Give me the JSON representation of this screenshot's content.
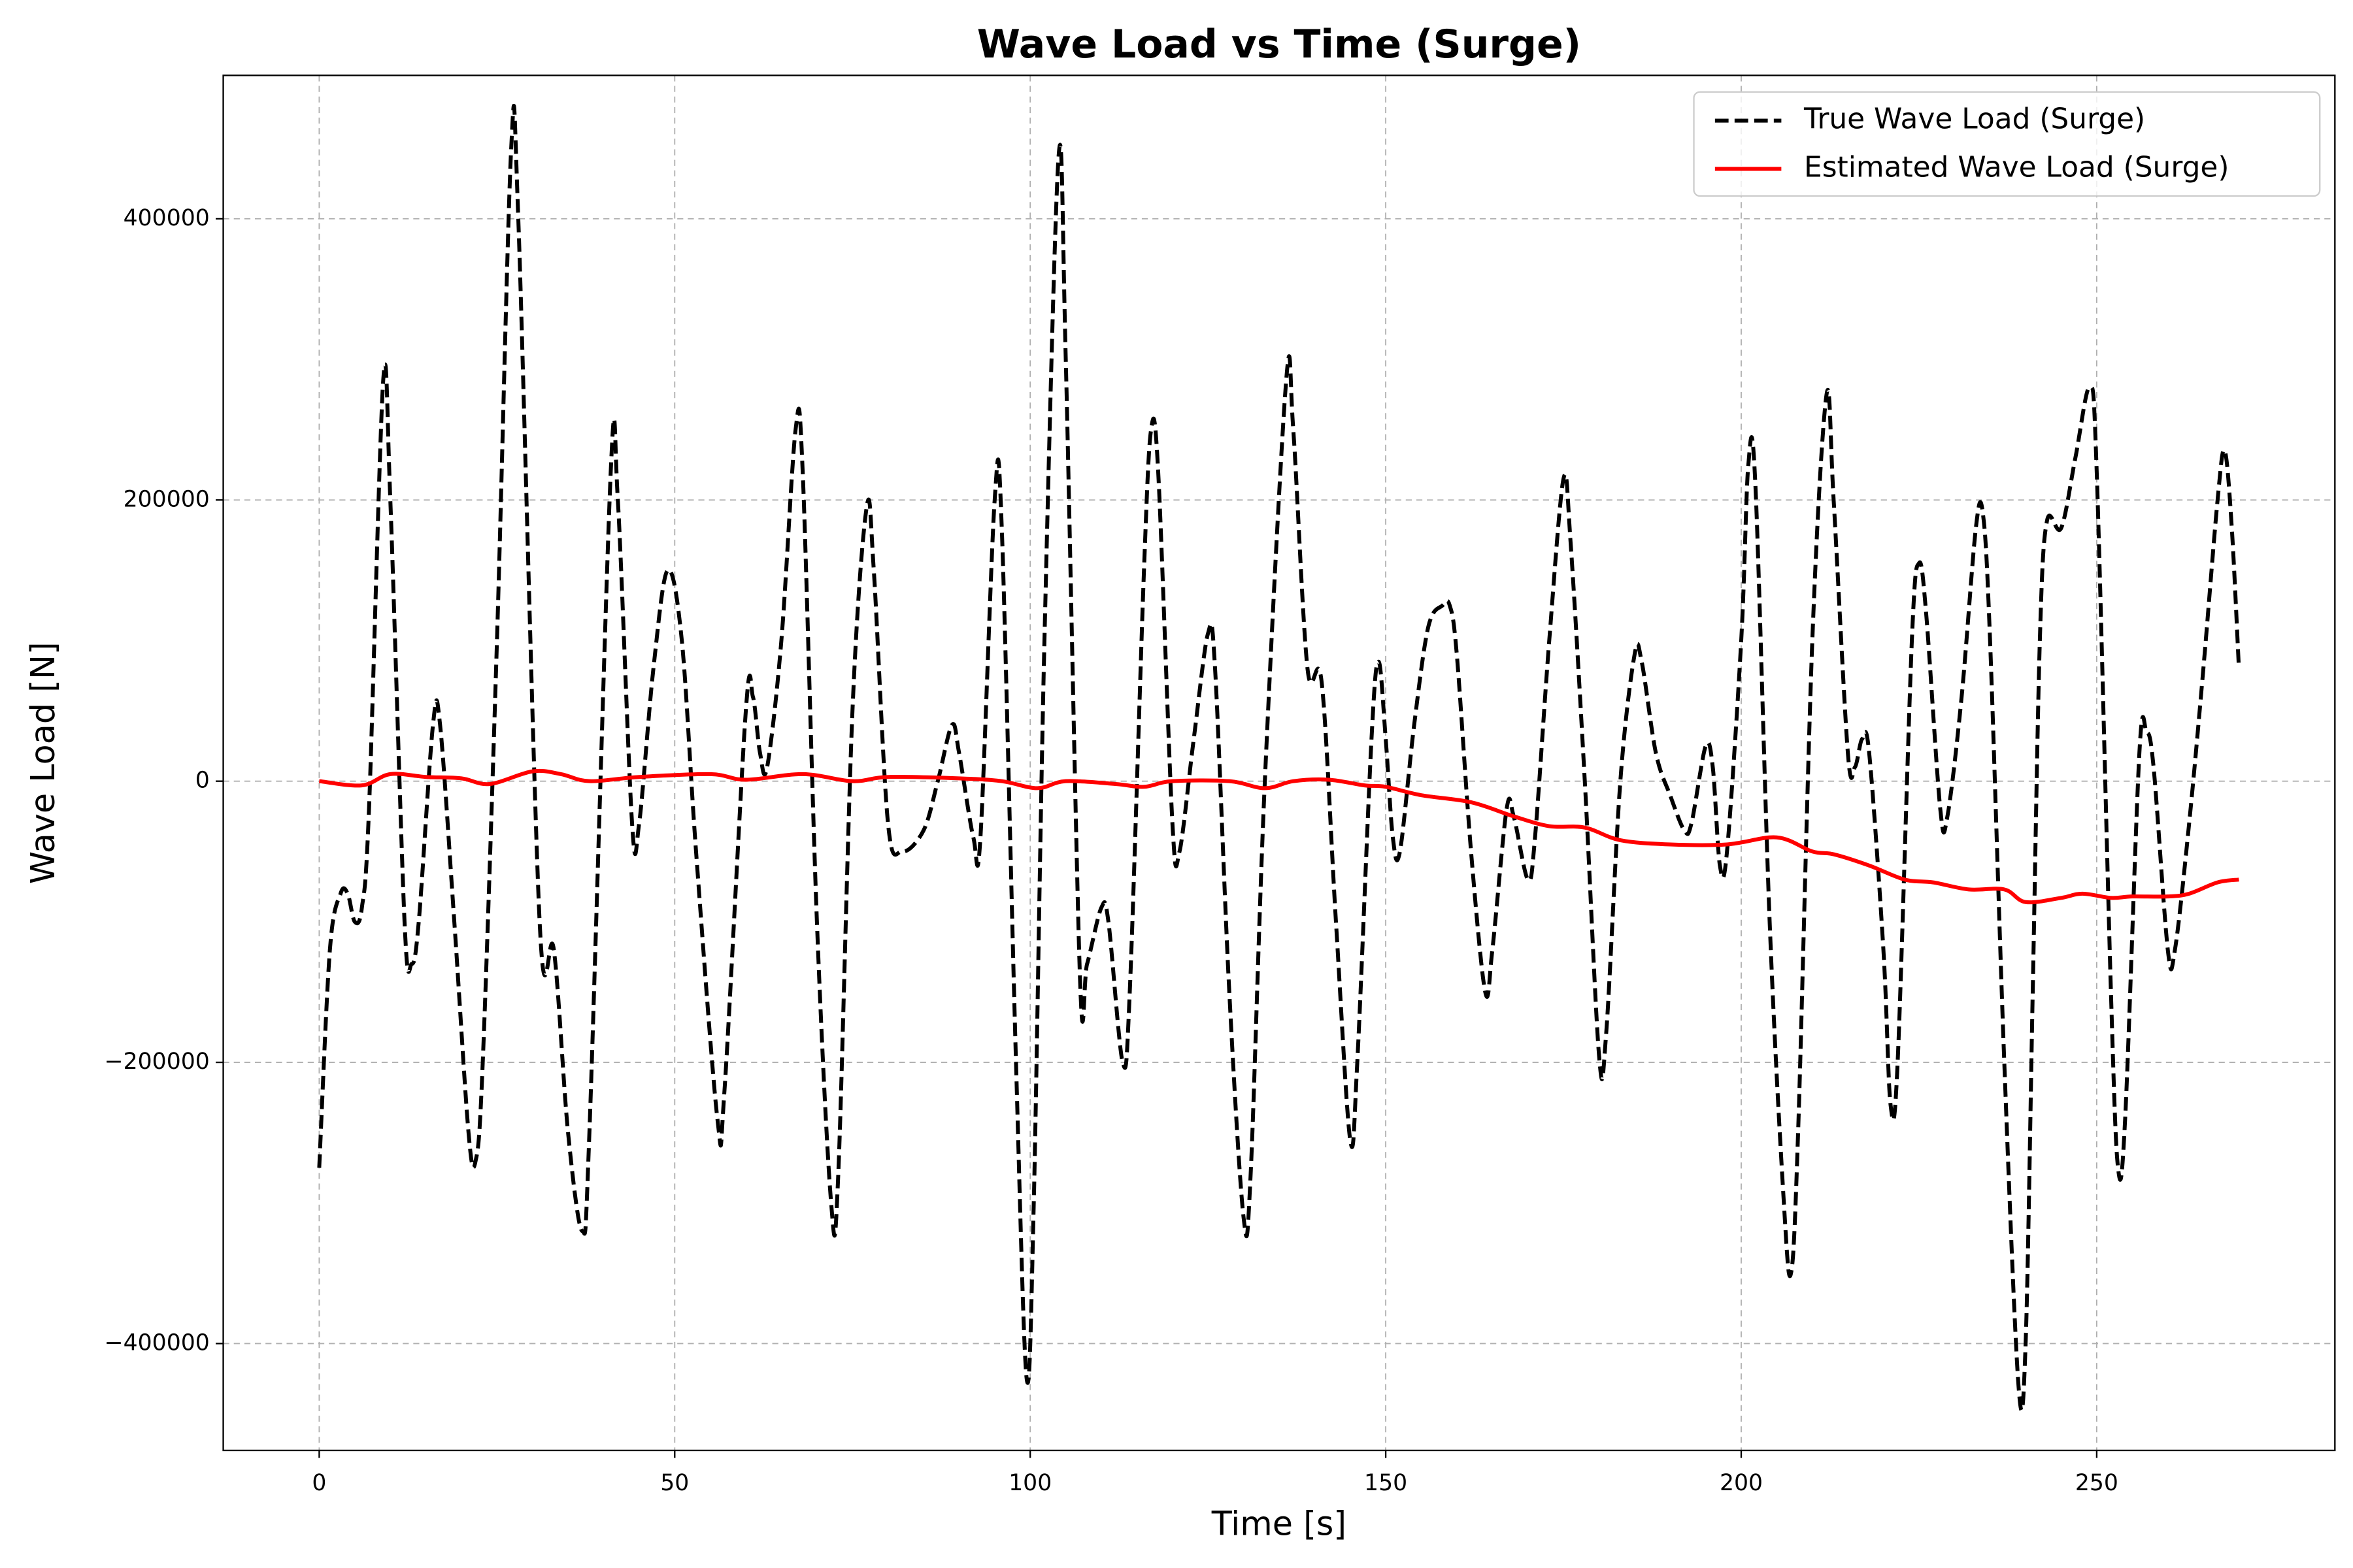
{
  "chart_data": {
    "type": "line",
    "title": "Wave Load vs Time (Surge)",
    "xlabel": "Time [s]",
    "ylabel": "Wave Load [N]",
    "xlim": [
      -13.5,
      283.5
    ],
    "ylim": [
      -476000,
      502000
    ],
    "xticks": [
      0,
      50,
      100,
      150,
      200,
      250
    ],
    "yticks": [
      {
        "value": -400000,
        "label": "−400000"
      },
      {
        "value": -200000,
        "label": "−200000"
      },
      0,
      200000,
      400000
    ],
    "grid": true,
    "legend": "upper right",
    "series": [
      {
        "name": "True Wave Load (Surge)",
        "color": "#000000",
        "style": "dashed",
        "x": [
          0,
          1.5,
          3,
          4,
          5,
          6,
          7,
          9,
          10,
          12,
          13,
          14,
          16,
          17,
          19,
          21,
          22,
          23,
          25,
          27,
          28,
          31,
          33,
          35,
          37,
          38,
          41,
          42,
          44,
          45,
          47,
          49,
          51,
          53,
          56,
          57,
          60,
          61,
          62,
          63,
          65,
          67,
          68,
          70,
          72,
          73,
          75,
          77,
          78,
          80,
          82,
          85,
          87,
          89,
          90,
          92,
          93,
          95,
          96,
          98,
          99.5,
          100.5,
          102,
          104,
          105,
          107,
          108,
          110,
          111,
          113,
          114,
          116,
          117,
          118,
          120,
          121,
          123,
          125,
          126,
          128,
          130,
          131,
          133,
          136,
          137,
          139,
          141,
          143,
          145,
          146,
          148,
          149,
          150,
          151,
          152,
          154,
          156,
          158,
          159,
          160,
          162,
          164,
          165,
          167,
          168,
          170,
          171,
          173,
          175,
          176,
          178,
          180,
          181,
          183,
          185,
          186,
          188,
          190,
          192,
          193,
          195,
          196,
          197,
          198,
          200,
          201,
          202,
          204,
          206,
          207,
          208,
          210,
          212,
          213,
          215,
          216,
          217,
          218,
          220,
          221,
          222,
          224,
          225,
          226,
          228,
          229,
          231,
          233,
          234,
          235,
          237,
          239,
          240,
          241,
          242,
          243,
          245,
          247,
          249,
          250,
          252,
          253,
          254,
          256,
          257,
          258,
          260,
          261,
          263,
          265,
          267,
          268,
          269,
          270
        ],
        "values": [
          -275000,
          -120000,
          -80000,
          -80000,
          -100000,
          -90000,
          -20000,
          285000,
          200000,
          -100000,
          -130000,
          -100000,
          40000,
          40000,
          -100000,
          -250000,
          -270000,
          -200000,
          100000,
          450000,
          400000,
          -100000,
          -120000,
          -250000,
          -320000,
          -250000,
          220000,
          200000,
          -30000,
          -30000,
          80000,
          150000,
          100000,
          -50000,
          -240000,
          -220000,
          50000,
          60000,
          20000,
          10000,
          100000,
          250000,
          220000,
          -100000,
          -300000,
          -280000,
          50000,
          195000,
          150000,
          -30000,
          -50000,
          -35000,
          0,
          40000,
          20000,
          -40000,
          -40000,
          200000,
          180000,
          -200000,
          -425000,
          -300000,
          100000,
          445000,
          300000,
          -140000,
          -130000,
          -90000,
          -100000,
          -200000,
          -150000,
          150000,
          250000,
          220000,
          -30000,
          -50000,
          30000,
          105000,
          80000,
          -150000,
          -310000,
          -280000,
          0,
          285000,
          250000,
          80000,
          70000,
          -100000,
          -255000,
          -200000,
          30000,
          85000,
          30000,
          -40000,
          -50000,
          40000,
          110000,
          125000,
          125000,
          90000,
          -50000,
          -150000,
          -120000,
          -20000,
          -25000,
          -70000,
          -40000,
          100000,
          215000,
          170000,
          0,
          -195000,
          -180000,
          0,
          90000,
          85000,
          20000,
          -10000,
          -35000,
          -30000,
          25000,
          10000,
          -60000,
          -50000,
          100000,
          225000,
          210000,
          -100000,
          -300000,
          -350000,
          -250000,
          100000,
          275000,
          200000,
          20000,
          10000,
          30000,
          20000,
          -120000,
          -230000,
          -200000,
          100000,
          155000,
          120000,
          -20000,
          -25000,
          60000,
          180000,
          190000,
          100000,
          -200000,
          -430000,
          -400000,
          -150000,
          100000,
          185000,
          180000,
          230000,
          280000,
          220000,
          -150000,
          -275000,
          -240000,
          20000,
          35000,
          10000,
          -120000,
          -120000,
          -30000,
          80000,
          200000,
          235000,
          180000,
          80000
        ]
      },
      {
        "name": "Estimated Wave Load (Surge)",
        "color": "#ff0000",
        "style": "solid",
        "x": [
          0,
          6,
          10,
          15,
          20,
          24,
          30,
          34,
          38,
          45,
          55,
          60,
          68,
          75,
          80,
          90,
          96,
          101,
          105,
          112,
          116,
          120,
          128,
          133,
          137,
          142,
          147,
          150,
          155,
          162,
          168,
          173,
          178,
          183,
          190,
          198,
          205,
          210,
          213,
          218,
          223,
          227,
          232,
          237,
          240,
          245,
          248,
          252,
          255,
          260,
          263,
          267,
          270
        ],
        "values": [
          0,
          -3000,
          5000,
          3000,
          2000,
          -2000,
          7000,
          5000,
          0,
          3000,
          5000,
          1000,
          5000,
          0,
          3000,
          2000,
          0,
          -5000,
          0,
          -2000,
          -4000,
          0,
          0,
          -5000,
          0,
          1000,
          -3000,
          -4000,
          -10000,
          -15000,
          -25000,
          -32000,
          -33000,
          -42000,
          -45000,
          -45000,
          -40000,
          -50000,
          -52000,
          -60000,
          -70000,
          -72000,
          -77000,
          -77000,
          -86000,
          -83000,
          -80000,
          -83000,
          -82000,
          -82000,
          -80000,
          -72000,
          -70000
        ]
      }
    ]
  }
}
